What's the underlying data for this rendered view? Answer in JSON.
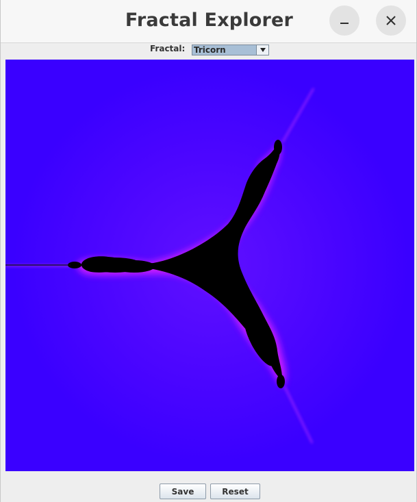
{
  "window": {
    "title": "Fractal Explorer",
    "minimize_icon": "minimize-icon",
    "close_icon": "close-icon"
  },
  "toolbar": {
    "fractal_label": "Fractal:",
    "fractal_selected": "Tricorn",
    "dropdown_icon": "chevron-down-icon"
  },
  "canvas": {
    "background_color": "#3a00ff",
    "set_color": "#000000",
    "edge_color": "#ff00ff"
  },
  "buttons": {
    "save_label": "Save",
    "reset_label": "Reset"
  }
}
